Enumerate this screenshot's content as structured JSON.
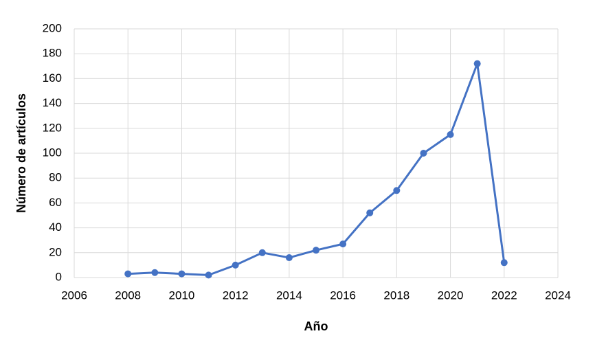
{
  "chart_data": {
    "type": "line",
    "x_label": "Año",
    "y_label": "Número de artículos",
    "x": [
      2008,
      2009,
      2010,
      2011,
      2012,
      2013,
      2014,
      2015,
      2016,
      2017,
      2018,
      2019,
      2020,
      2021,
      2022
    ],
    "series": [
      {
        "color": "#4472c4",
        "values": [
          3,
          4,
          3,
          2,
          10,
          20,
          16,
          22,
          27,
          52,
          70,
          100,
          115,
          172,
          12
        ]
      }
    ],
    "xlim": [
      2006,
      2024
    ],
    "xticks": [
      2006,
      2008,
      2010,
      2012,
      2014,
      2016,
      2018,
      2020,
      2022,
      2024
    ],
    "ylim": [
      0,
      200
    ],
    "yticks": [
      0,
      20,
      40,
      60,
      80,
      100,
      120,
      140,
      160,
      180,
      200
    ],
    "grid": true
  }
}
